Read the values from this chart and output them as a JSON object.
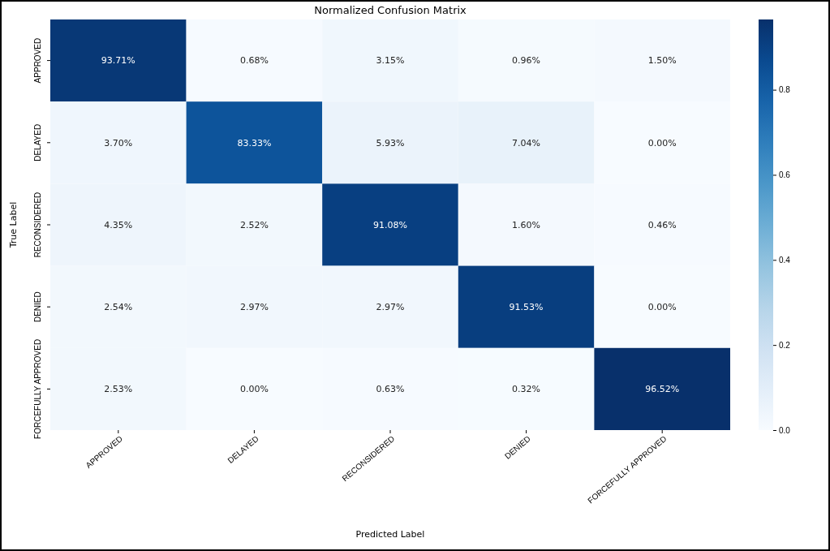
{
  "chart_data": {
    "type": "heatmap",
    "title": "Normalized Confusion Matrix",
    "xlabel": "Predicted Label",
    "ylabel": "True Label",
    "categories": [
      "APPROVED",
      "DELAYED",
      "RECONSIDERED",
      "DENIED",
      "FORCEFULLY APPROVED"
    ],
    "y_categories": [
      "APPROVED",
      "DELAYED",
      "RECONSIDERED",
      "DENIED",
      "FORCEFULLY APPROVED"
    ],
    "cells": [
      [
        0.9371,
        0.0068,
        0.0315,
        0.0096,
        0.015
      ],
      [
        0.037,
        0.8333,
        0.0593,
        0.0704,
        0.0
      ],
      [
        0.0435,
        0.0252,
        0.9108,
        0.016,
        0.0046
      ],
      [
        0.0254,
        0.0297,
        0.0297,
        0.9153,
        0.0
      ],
      [
        0.0253,
        0.0,
        0.0063,
        0.0032,
        0.9652
      ]
    ],
    "cell_labels": [
      [
        "93.71%",
        "0.68%",
        "3.15%",
        "0.96%",
        "1.50%"
      ],
      [
        "3.70%",
        "83.33%",
        "5.93%",
        "7.04%",
        "0.00%"
      ],
      [
        "4.35%",
        "2.52%",
        "91.08%",
        "1.60%",
        "0.46%"
      ],
      [
        "2.54%",
        "2.97%",
        "2.97%",
        "91.53%",
        "0.00%"
      ],
      [
        "2.53%",
        "0.00%",
        "0.63%",
        "0.32%",
        "96.52%"
      ]
    ],
    "clim": [
      0,
      0.9652
    ],
    "cticks": [
      {
        "value": 0,
        "label": "0.0"
      },
      {
        "value": 0.2,
        "label": "0.2"
      },
      {
        "value": 0.4,
        "label": "0.4"
      },
      {
        "value": 0.6,
        "label": "0.6"
      },
      {
        "value": 0.8,
        "label": "0.8"
      }
    ]
  }
}
